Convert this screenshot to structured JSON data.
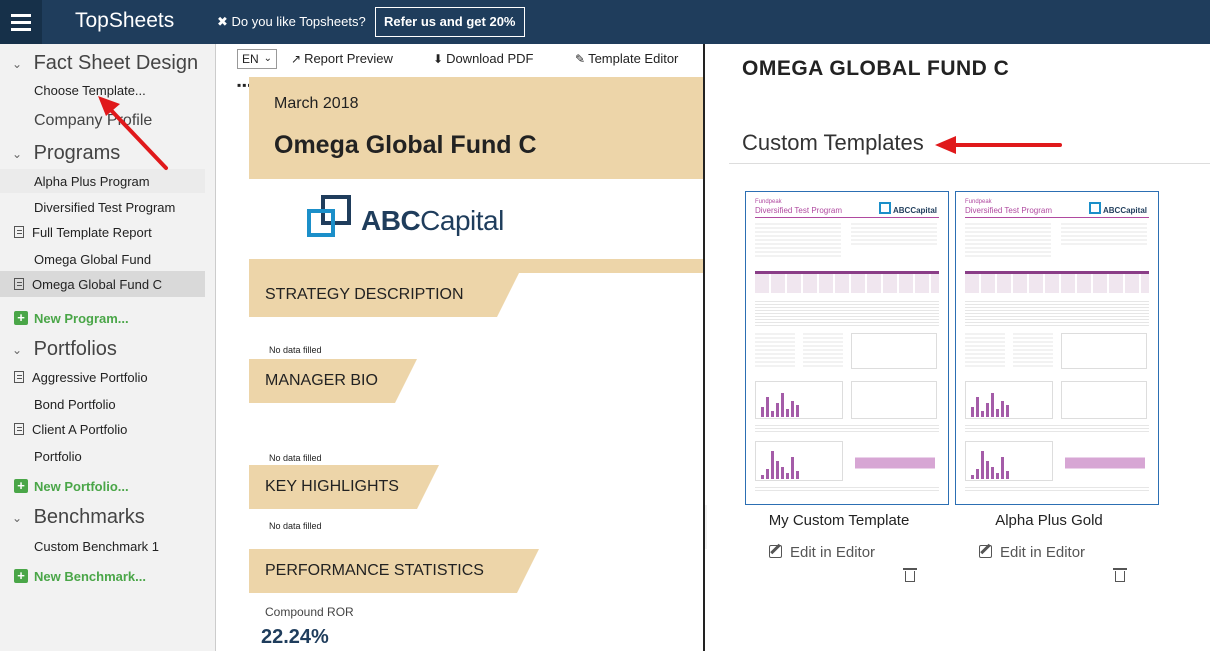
{
  "topbar": {
    "brand": "TopSheets",
    "promo_text": "✖ Do you like Topsheets?",
    "promo_button": "Refer us and get 20%"
  },
  "sidebar": {
    "fact_sheet_design": {
      "title": "Fact Sheet Design",
      "items": [
        "Choose Template...",
        "Company Profile"
      ]
    },
    "programs": {
      "title": "Programs",
      "items": [
        "Alpha Plus Program",
        "Diversified Test Program",
        "Full Template Report",
        "Omega Global Fund",
        "Omega Global Fund C"
      ],
      "new_label": "New Program..."
    },
    "portfolios": {
      "title": "Portfolios",
      "items": [
        "Aggressive Portfolio",
        "Bond Portfolio",
        "Client A Portfolio",
        "Portfolio"
      ],
      "new_label": "New Portfolio..."
    },
    "benchmarks": {
      "title": "Benchmarks",
      "items": [
        "Custom Benchmark 1"
      ],
      "new_label": "New Benchmark..."
    }
  },
  "preview": {
    "language": "EN",
    "report_preview": "Report Preview",
    "download_pdf": "Download PDF",
    "template_editor": "Template Editor",
    "more": "▪▪▪",
    "sheet": {
      "date": "March 2018",
      "fund_name": "Omega Global Fund C",
      "logo_text_bold": "ABC",
      "logo_text": "Capital",
      "sections": {
        "strategy": "STRATEGY DESCRIPTION",
        "manager": "MANAGER BIO",
        "highlights": "KEY HIGHLIGHTS",
        "performance": "PERFORMANCE STATISTICS"
      },
      "no_data": "No data filled",
      "compound_ror_label": "Compound ROR",
      "compound_ror_value": "22.24%"
    }
  },
  "right_panel": {
    "fund_title": "OMEGA GLOBAL FUND C",
    "custom_templates_heading": "Custom Templates",
    "edit_label": "Edit in Editor",
    "templates": [
      {
        "name": "My Custom Template",
        "thumb_brand": "Fundpeak",
        "thumb_title": "Diversified Test Program",
        "thumb_logo": "ABCCapital"
      },
      {
        "name": "Alpha Plus Gold",
        "thumb_brand": "Fundpeak",
        "thumb_title": "Diversified Test Program",
        "thumb_logo": "ABCCapital"
      }
    ]
  },
  "colors": {
    "topbar": "#1f3d5c",
    "accent_tan": "#edd5a9",
    "link_green": "#4aa648",
    "template_border": "#2c6fb3",
    "annotation_red": "#e0191b"
  }
}
